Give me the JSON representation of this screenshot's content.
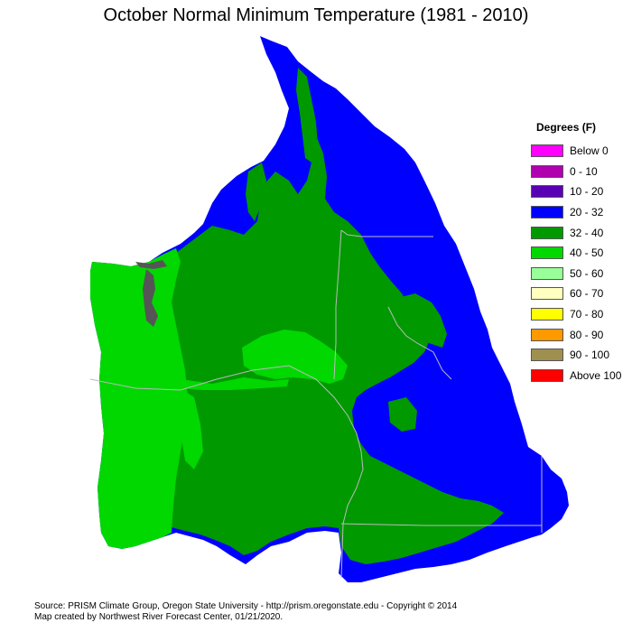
{
  "title": "October Normal Minimum Temperature (1981 - 2010)",
  "legend": {
    "title": "Degrees (F)",
    "items": [
      {
        "label": "Below 0",
        "color": "#ff00ff"
      },
      {
        "label": "0 - 10",
        "color": "#b000b0"
      },
      {
        "label": "10 - 20",
        "color": "#5a00b4"
      },
      {
        "label": "20 - 32",
        "color": "#0000ff"
      },
      {
        "label": "32 - 40",
        "color": "#009900"
      },
      {
        "label": "40 - 50",
        "color": "#00d800"
      },
      {
        "label": "50 - 60",
        "color": "#99ff99"
      },
      {
        "label": "60 - 70",
        "color": "#ffffc0"
      },
      {
        "label": "70 - 80",
        "color": "#ffff00"
      },
      {
        "label": "80 - 90",
        "color": "#ff9900"
      },
      {
        "label": "90 - 100",
        "color": "#a09050"
      },
      {
        "label": "Above 100",
        "color": "#ff0000"
      }
    ]
  },
  "footer": {
    "line1": "Source: PRISM Climate Group, Oregon State University - http://prism.oregonstate.edu - Copyright © 2014",
    "line2": "Map created by Northwest River Forecast Center, 01/21/2020."
  }
}
